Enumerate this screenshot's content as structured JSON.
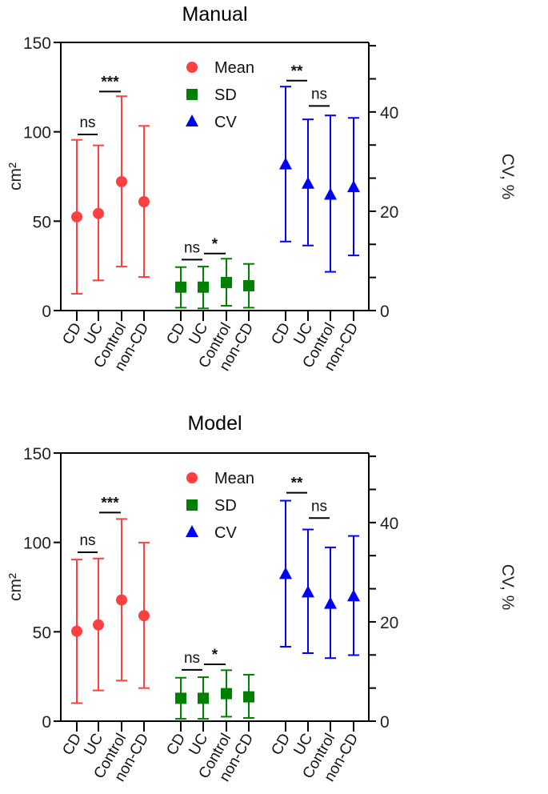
{
  "colors": {
    "mean": "#ff4040",
    "sd": "#008000",
    "cv": "#0000ff",
    "axis": "#000000"
  },
  "chart_data": [
    {
      "type": "scatter",
      "title": "Manual",
      "ylabel": "cm²",
      "ylabel_right": "CV, %",
      "ylim": [
        0,
        150
      ],
      "ylim_right": [
        0,
        54
      ],
      "yticks": [
        0,
        50,
        100,
        150
      ],
      "yticks_right": [
        0,
        20,
        40
      ],
      "legend": {
        "placement": "top-center",
        "entries": [
          {
            "label": "Mean",
            "marker": "circle"
          },
          {
            "label": "SD",
            "marker": "square"
          },
          {
            "label": "CV",
            "marker": "triangle"
          }
        ]
      },
      "categories": [
        "CD",
        "UC",
        "Control",
        "non-CD"
      ],
      "series": [
        {
          "name": "Mean",
          "axis": "left",
          "values": [
            52.4,
            54.3,
            72.1,
            60.9
          ],
          "upper": [
            95.5,
            92.4,
            119.9,
            103.3
          ],
          "lower": [
            9.4,
            16.9,
            24.6,
            18.8
          ]
        },
        {
          "name": "SD",
          "axis": "left",
          "values": [
            13.1,
            13.1,
            15.7,
            13.9
          ],
          "upper": [
            24.3,
            24.6,
            29.0,
            26.1
          ],
          "lower": [
            1.6,
            1.2,
            2.7,
            1.6
          ]
        },
        {
          "name": "CV",
          "axis": "right",
          "values": [
            29.4,
            25.5,
            23.3,
            24.8
          ],
          "upper": [
            45.1,
            38.5,
            39.3,
            38.8
          ],
          "lower": [
            13.9,
            13.1,
            7.8,
            11.1
          ]
        }
      ],
      "annotations": [
        {
          "series": "Mean",
          "from": 0,
          "to": 1,
          "y": 98.5,
          "text": "ns"
        },
        {
          "series": "Mean",
          "from": 1,
          "to": 2,
          "y": 122.5,
          "text": "***"
        },
        {
          "series": "SD",
          "from": 0,
          "to": 1,
          "y": 28.5,
          "text": "ns"
        },
        {
          "series": "SD",
          "from": 1,
          "to": 2,
          "y": 31.9,
          "text": "*"
        },
        {
          "series": "CV",
          "from": 0,
          "to": 1,
          "y": 46.3,
          "text": "**"
        },
        {
          "series": "CV",
          "from": 1,
          "to": 2,
          "y": 41.2,
          "text": "ns"
        }
      ]
    },
    {
      "type": "scatter",
      "title": "Model",
      "ylabel": "cm²",
      "ylabel_right": "CV, %",
      "ylim": [
        0,
        150
      ],
      "ylim_right": [
        0,
        54
      ],
      "yticks": [
        0,
        50,
        100,
        150
      ],
      "yticks_right": [
        0,
        20,
        40
      ],
      "legend": {
        "placement": "top-center",
        "entries": [
          {
            "label": "Mean",
            "marker": "circle"
          },
          {
            "label": "SD",
            "marker": "square"
          },
          {
            "label": "CV",
            "marker": "triangle"
          }
        ]
      },
      "categories": [
        "CD",
        "UC",
        "Control",
        "non-CD"
      ],
      "series": [
        {
          "name": "Mean",
          "axis": "left",
          "values": [
            50.3,
            53.9,
            67.8,
            59.0
          ],
          "upper": [
            90.4,
            91.0,
            113.1,
            99.9
          ],
          "lower": [
            10.1,
            17.2,
            22.7,
            18.5
          ]
        },
        {
          "name": "SD",
          "axis": "left",
          "values": [
            12.8,
            12.8,
            15.4,
            13.6
          ],
          "upper": [
            24.3,
            24.6,
            28.5,
            26.0
          ],
          "lower": [
            1.3,
            1.3,
            2.5,
            1.8
          ]
        },
        {
          "name": "CV",
          "axis": "right",
          "values": [
            29.6,
            25.9,
            23.6,
            25.1
          ],
          "upper": [
            44.4,
            38.6,
            35.0,
            37.3
          ],
          "lower": [
            15.0,
            13.7,
            12.7,
            13.3
          ]
        }
      ],
      "annotations": [
        {
          "series": "Mean",
          "from": 0,
          "to": 1,
          "y": 94.5,
          "text": "ns"
        },
        {
          "series": "Mean",
          "from": 1,
          "to": 2,
          "y": 116.7,
          "text": "***"
        },
        {
          "series": "SD",
          "from": 0,
          "to": 1,
          "y": 28.7,
          "text": "ns"
        },
        {
          "series": "SD",
          "from": 1,
          "to": 2,
          "y": 31.8,
          "text": "*"
        },
        {
          "series": "CV",
          "from": 0,
          "to": 1,
          "y": 46.0,
          "text": "**"
        },
        {
          "series": "CV",
          "from": 1,
          "to": 2,
          "y": 40.9,
          "text": "ns"
        }
      ]
    }
  ]
}
